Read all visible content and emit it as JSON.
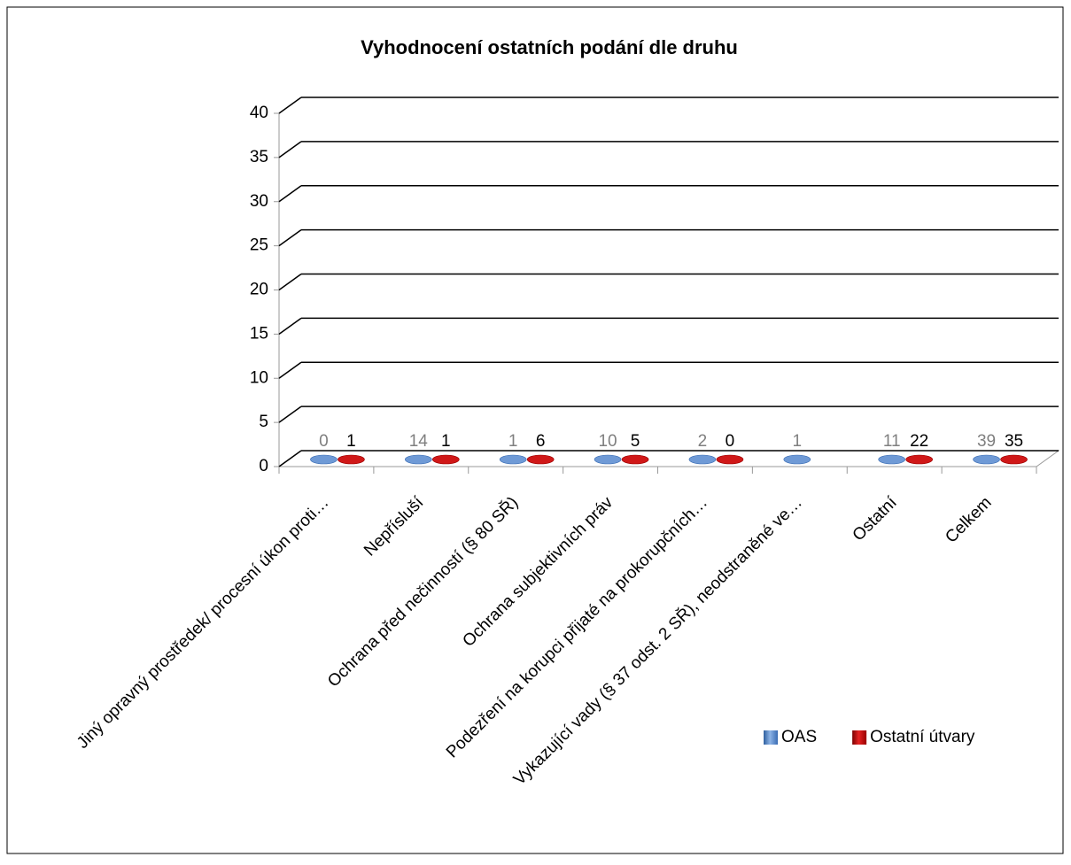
{
  "chart_data": {
    "type": "bar3d",
    "title": "Vyhodnocení ostatních podání dle druhu",
    "categories": [
      "Jiný opravný prostředek/ procesní úkon proti…",
      "Nepřísluší",
      "Ochrana před nečinností (§ 80 SŘ)",
      "Ochrana subjektivních práv",
      "Podezření na korupci přijaté na prokorupčních…",
      "Vykazující vady (§ 37 odst. 2 SŘ), neodstraněné ve…",
      "Ostatní",
      "Celkem"
    ],
    "series": [
      {
        "name": "OAS",
        "color": "#4f81bd",
        "values": [
          0,
          14,
          1,
          10,
          2,
          1,
          11,
          39
        ]
      },
      {
        "name": "Ostatní útvary",
        "color": "#c00000",
        "values": [
          1,
          1,
          6,
          5,
          0,
          null,
          22,
          35
        ]
      }
    ],
    "ylim": [
      0,
      40
    ],
    "yticks": [
      0,
      5,
      10,
      15,
      20,
      25,
      30,
      35,
      40
    ],
    "grid": true,
    "legend": "bottom-right"
  }
}
